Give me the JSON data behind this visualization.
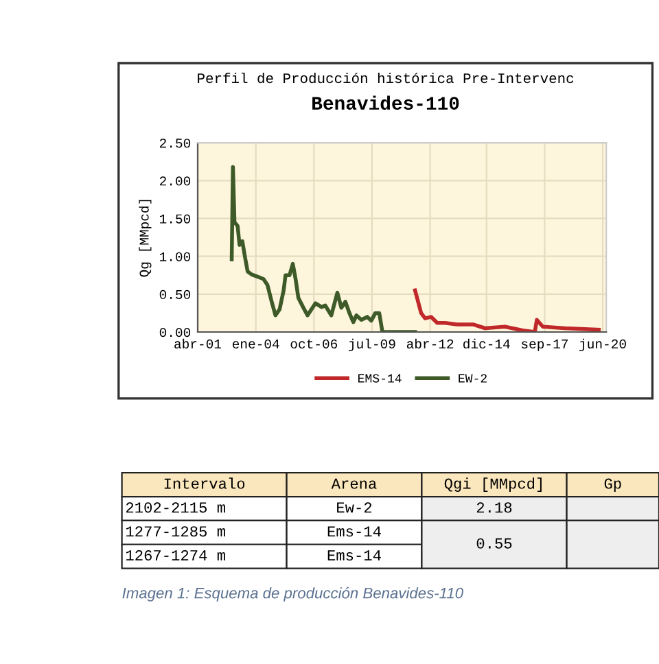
{
  "chart_data": {
    "type": "line",
    "title": "Perfil de Producción histórica Pre-Intervenc",
    "subtitle": "Benavides-110",
    "ylabel": "Qg [MMpcd]",
    "series": [
      {
        "name": "EMS-14",
        "color": "#c0282a",
        "x": [
          "2011-07-15",
          "2011-10-28",
          "2012-01-05",
          "2012-04-18",
          "2012-08-01",
          "2012-12-15",
          "2013-07-10",
          "2014-04-12",
          "2014-11-05",
          "2015-10-15",
          "2016-08-20",
          "2017-03-15",
          "2017-04-18",
          "2017-08-01",
          "2018-08-15",
          "2020-03-25"
        ],
        "values": [
          0.55,
          0.25,
          0.18,
          0.2,
          0.12,
          0.12,
          0.1,
          0.1,
          0.05,
          0.07,
          0.02,
          0.0,
          0.16,
          0.07,
          0.05,
          0.03
        ]
      },
      {
        "name": "EW-2",
        "color": "#3d5a28",
        "x": [
          "2002-11-10",
          "2002-12-01",
          "2002-12-28",
          "2003-02-20",
          "2003-03-25",
          "2003-05-12",
          "2003-06-25",
          "2003-08-12",
          "2003-10-20",
          "2004-02-01",
          "2004-05-12",
          "2004-07-20",
          "2004-10-01",
          "2004-12-05",
          "2005-02-15",
          "2005-04-25",
          "2005-05-28",
          "2005-08-05",
          "2005-10-01",
          "2005-11-18",
          "2006-01-05",
          "2006-04-03",
          "2006-06-12",
          "2006-10-28",
          "2007-02-10",
          "2007-04-15",
          "2007-07-28",
          "2007-11-10",
          "2008-01-18",
          "2008-03-28",
          "2008-06-05",
          "2008-08-12",
          "2008-10-05",
          "2008-12-28",
          "2009-04-10",
          "2009-06-18",
          "2009-08-28",
          "2009-11-03",
          "2009-12-28",
          "2011-07-15"
        ],
        "values": [
          0.96,
          2.18,
          1.45,
          1.4,
          1.15,
          1.2,
          1.0,
          0.8,
          0.76,
          0.73,
          0.7,
          0.62,
          0.4,
          0.22,
          0.3,
          0.55,
          0.75,
          0.75,
          0.9,
          0.7,
          0.45,
          0.32,
          0.22,
          0.38,
          0.33,
          0.35,
          0.22,
          0.52,
          0.32,
          0.4,
          0.25,
          0.13,
          0.22,
          0.16,
          0.2,
          0.15,
          0.25,
          0.25,
          0.0,
          0.0
        ]
      }
    ],
    "xlim": [
      "2001-04-01",
      "2020-08-01"
    ],
    "xticks": [
      {
        "value": "2001-04-01",
        "label": "abr-01"
      },
      {
        "value": "2004-01-01",
        "label": "ene-04"
      },
      {
        "value": "2006-10-01",
        "label": "oct-06"
      },
      {
        "value": "2009-07-01",
        "label": "jul-09"
      },
      {
        "value": "2012-04-01",
        "label": "abr-12"
      },
      {
        "value": "2014-12-01",
        "label": "dic-14"
      },
      {
        "value": "2017-09-01",
        "label": "sep-17"
      },
      {
        "value": "2020-06-01",
        "label": "jun-20"
      }
    ],
    "ylim": [
      0,
      2.5
    ],
    "yticks": [
      {
        "value": 0,
        "label": "0.00"
      },
      {
        "value": 0.5,
        "label": "0.50"
      },
      {
        "value": 1,
        "label": "1.00"
      },
      {
        "value": 1.5,
        "label": "1.50"
      },
      {
        "value": 2,
        "label": "2.00"
      },
      {
        "value": 2.5,
        "label": "2.50"
      }
    ],
    "grid": true,
    "legend": "bottom",
    "marker": "none",
    "line_style": "solid",
    "annotations": [
      "Intervalo",
      "Arena",
      "Qgi [MMpcd]",
      "Gp",
      "2102-2115 m",
      "Ew-2",
      "2.18",
      "1277-1285 m",
      "Ems-14",
      "0.55",
      "1267-1274 m",
      "Ems-14",
      "Imagen 1: Esquema de producción Benavides-110"
    ]
  }
}
